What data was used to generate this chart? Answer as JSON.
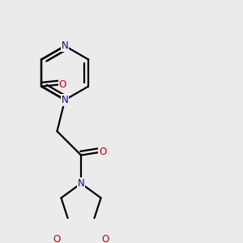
{
  "bg_color": "#ebebeb",
  "bond_color": "#000000",
  "N_color": "#0000cc",
  "O_color": "#cc0000",
  "lw": 1.6,
  "figsize": [
    3.0,
    3.0
  ],
  "dpi": 100,
  "xlim": [
    0.5,
    5.5
  ],
  "ylim": [
    0.3,
    5.3
  ]
}
